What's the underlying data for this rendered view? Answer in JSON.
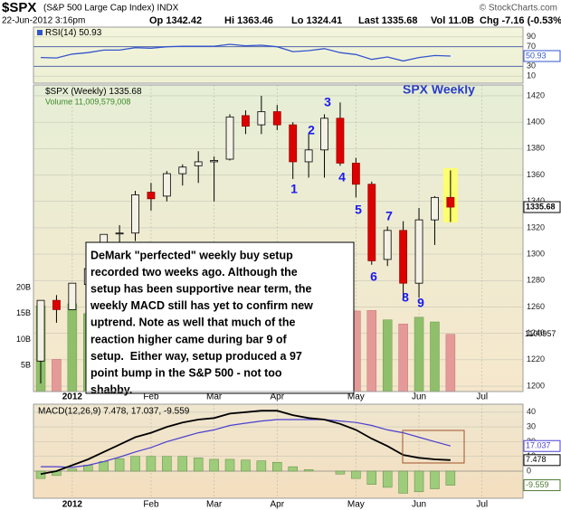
{
  "header": {
    "symbol": "$SPX",
    "name": "(S&P 500 Large Cap Index) INDX",
    "copyright": "© StockCharts.com",
    "date": "22-Jun-2012 3:16pm",
    "open": "Op 1342.42",
    "high": "Hi 1363.46",
    "low": "Lo 1324.41",
    "last": "Last 1335.68",
    "volume": "Vol 11.0B",
    "change": "Chg -7.16 (-0.53%)"
  },
  "chart_data": [
    {
      "type": "line",
      "legend": "RSI(14) 50.93",
      "categories": [
        null,
        null,
        null,
        null,
        null,
        null,
        null,
        null,
        null,
        null,
        null,
        null,
        null,
        null,
        null,
        null,
        null,
        null,
        null,
        null,
        null,
        null,
        null,
        null,
        null,
        null,
        null
      ],
      "values": [
        48,
        47,
        55,
        58,
        63,
        63,
        68,
        67,
        70,
        71,
        71,
        71,
        75,
        72,
        73,
        70,
        60,
        62,
        66,
        58,
        54,
        44,
        49,
        41,
        48,
        52,
        50.93
      ],
      "color": "#3355cc",
      "xlim": [
        -0.46,
        30.6
      ],
      "ylim": [
        -4.5,
        110
      ],
      "yticks": [
        10,
        30,
        70,
        90
      ],
      "grid": true
    },
    {
      "type": "candlestick",
      "legend": "$SPX (Weekly) 1335.68",
      "title": "SPX Weekly",
      "categories": [
        null,
        null,
        null,
        null,
        null,
        null,
        null,
        null,
        null,
        null,
        null,
        null,
        null,
        null,
        null,
        null,
        null,
        null,
        null,
        null,
        null,
        null,
        null,
        null,
        null,
        null,
        null
      ],
      "open": [
        1219,
        1265,
        1258,
        1277,
        1290,
        1316,
        1316,
        1347,
        1344,
        1361,
        1367,
        1370,
        1372,
        1405,
        1398,
        1408,
        1398,
        1370,
        1379,
        1403,
        1369,
        1353,
        1296,
        1318,
        1278,
        1326,
        1343
      ],
      "high": [
        1265,
        1269,
        1278,
        1296,
        1315,
        1322,
        1348,
        1354,
        1363,
        1368,
        1378,
        1374,
        1406,
        1409,
        1420,
        1413,
        1400,
        1391,
        1406,
        1415,
        1373,
        1355,
        1321,
        1325,
        1335,
        1344,
        1363.5
      ],
      "low": [
        1202,
        1248,
        1258,
        1274,
        1286,
        1300,
        1310,
        1333,
        1340,
        1352,
        1354,
        1340,
        1371,
        1391,
        1391,
        1394,
        1357,
        1358,
        1358,
        1367,
        1343,
        1292,
        1291,
        1266,
        1267,
        1307,
        1324.4
      ],
      "close": [
        1265,
        1258,
        1278,
        1289,
        1315,
        1316,
        1345,
        1342,
        1361,
        1366,
        1370,
        1371,
        1404,
        1397,
        1408,
        1398,
        1370,
        1379,
        1403,
        1369,
        1353,
        1295,
        1318,
        1278,
        1326,
        1343,
        1335.68
      ],
      "down_color": "#dd0000",
      "xlim": [
        -0.46,
        30.6
      ],
      "xticks": [
        {
          "value": 2,
          "label": "2012"
        },
        {
          "value": 7,
          "label": "Feb"
        },
        {
          "value": 11,
          "label": "Mar"
        },
        {
          "value": 15,
          "label": "Apr"
        },
        {
          "value": 20,
          "label": "May"
        },
        {
          "value": 24,
          "label": "Jun"
        },
        {
          "value": 28,
          "label": "Jul"
        }
      ],
      "ylim": [
        1195.9,
        1428.2
      ],
      "yticks": [
        1200,
        1220,
        1240,
        1260,
        1280,
        1300,
        1320,
        1340,
        1360,
        1380,
        1400,
        1420
      ],
      "grid": true,
      "volume": {
        "legend": "Volume 11,009,579,008",
        "last_label": "1100957",
        "values": [
          16.5,
          6.2,
          16.9,
          15,
          15.5,
          16,
          16.5,
          15,
          14,
          14.5,
          15,
          14,
          15.5,
          15,
          15,
          14.5,
          16,
          15.5,
          14,
          15,
          15.5,
          15.6,
          13.8,
          13,
          14.3,
          13.4,
          11.01
        ],
        "up_color": "#8fbf6a",
        "down_color": "#e59a9a",
        "ylim": [
          0,
          59
        ],
        "yticks": [
          {
            "value": 5,
            "label": "5B"
          },
          {
            "value": 10,
            "label": "10B"
          },
          {
            "value": 15,
            "label": "15B"
          },
          {
            "value": 20,
            "label": "20B"
          }
        ]
      },
      "annotations": [
        "1",
        "2",
        "3",
        "4",
        "5",
        "6",
        "7",
        "8",
        "9"
      ],
      "note": [
        "DeMark \"perfected\" weekly buy setup",
        "recorded two weeks ago. Although the",
        "setup has been supportive near term, the",
        "weekly MACD still has yet to confirm new",
        "uptrend. Note as well that much of the",
        "reaction higher came during bar 9 of",
        "setup.  Either way, setup produced a 97",
        "point bump in the S&P 500 - not too",
        "shabby."
      ]
    },
    {
      "type": "macd",
      "legend": "MACD(12,26,9) 7.478, 17.037, -9.559",
      "categories": [
        null,
        null,
        null,
        null,
        null,
        null,
        null,
        null,
        null,
        null,
        null,
        null,
        null,
        null,
        null,
        null,
        null,
        null,
        null,
        null,
        null,
        null,
        null,
        null,
        null,
        null,
        null
      ],
      "macd": {
        "color": "#000000",
        "values": [
          -2,
          0,
          4,
          8,
          13,
          18,
          23,
          26,
          30,
          33,
          35,
          36,
          39,
          40,
          41,
          41,
          38,
          36,
          35,
          32,
          28,
          22,
          17,
          11,
          9,
          8,
          7.478
        ]
      },
      "signal": {
        "color": "#4a3fd0",
        "values": [
          3,
          3,
          2.5,
          4,
          6.5,
          9.5,
          13,
          16,
          20,
          23,
          26,
          28,
          31,
          32.5,
          34,
          35,
          35,
          35,
          35,
          34,
          33,
          31,
          28,
          26,
          23,
          20,
          17.037
        ]
      },
      "histogram": {
        "color": "#9dcc7a",
        "values": [
          -5,
          -3,
          1.5,
          4,
          6.5,
          8.5,
          10,
          10,
          10,
          10,
          9,
          8,
          8,
          7.5,
          7,
          6,
          3,
          1,
          0,
          -2,
          -5,
          -9,
          -11,
          -15,
          -14,
          -12,
          -9.559
        ]
      },
      "xlim": [
        -0.46,
        30.6
      ],
      "xticks": [
        {
          "value": 2,
          "label": "2012"
        },
        {
          "value": 7,
          "label": "Feb"
        },
        {
          "value": 11,
          "label": "Mar"
        },
        {
          "value": 15,
          "label": "Apr"
        },
        {
          "value": 20,
          "label": "May"
        },
        {
          "value": 24,
          "label": "Jun"
        },
        {
          "value": 28,
          "label": "Jul"
        }
      ],
      "ylim": [
        -18.4,
        45.4
      ],
      "yticks": [
        0,
        10,
        20,
        30,
        40
      ],
      "grid": true
    }
  ]
}
